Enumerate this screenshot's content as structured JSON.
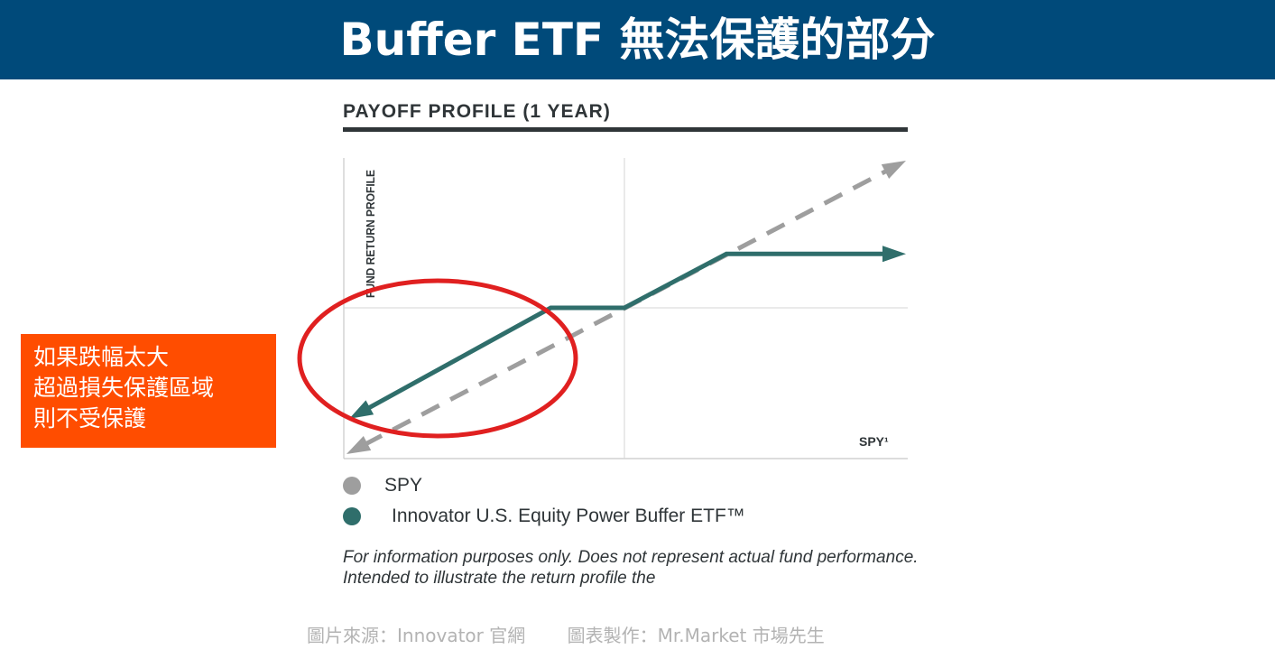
{
  "banner": {
    "title": "Buffer ETF 無法保護的部分"
  },
  "callout": {
    "lines": [
      "如果跌幅太大",
      "超過損失保護區域",
      "則不受保護"
    ]
  },
  "source": {
    "image_source": "圖片來源：Innovator 官網",
    "chart_credit": "圖表製作：Mr.Market 市場先生"
  },
  "colors": {
    "banner": "#004a7a",
    "spy": "#9e9e9e",
    "etf": "#2f6e6b",
    "callout": "#ff4d00",
    "circle": "#e02020"
  },
  "chart_data": {
    "type": "line",
    "title": "PAYOFF PROFILE (1 YEAR)",
    "ylabel": "FUND RETURN PROFILE",
    "xlabel": "SPY¹",
    "xlim": [
      -1,
      1
    ],
    "ylim": [
      -1,
      1
    ],
    "series": [
      {
        "name": "SPY",
        "style": "dashed",
        "color": "#9e9e9e",
        "x": [
          -1,
          1
        ],
        "y": [
          -1,
          1
        ]
      },
      {
        "name": "Innovator U.S. Equity Power Buffer ETF™",
        "style": "solid",
        "color": "#2f6e6b",
        "x": [
          -1,
          -0.26,
          0,
          0.36,
          1
        ],
        "y": [
          -0.74,
          0,
          0,
          0.36,
          0.36
        ]
      }
    ],
    "legend": [
      {
        "label": "SPY",
        "color": "#9e9e9e"
      },
      {
        "label": "Innovator U.S. Equity Power Buffer ETF™",
        "color": "#2f6e6b"
      }
    ],
    "footnote": "For information purposes only. Does not represent actual fund performance. Intended to illustrate the return profile the"
  }
}
